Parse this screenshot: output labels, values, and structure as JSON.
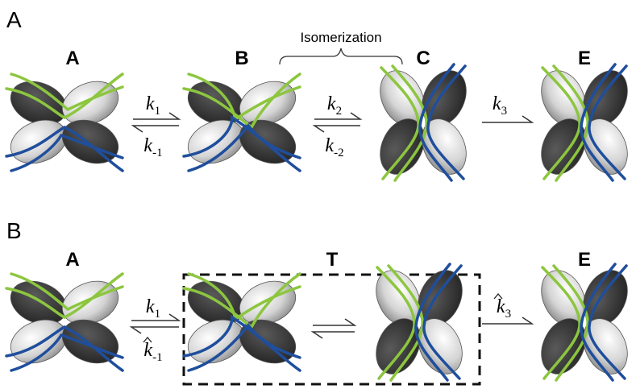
{
  "panels": [
    {
      "label": "A",
      "states": [
        "A",
        "B",
        "C",
        "E"
      ],
      "annotation": "Isomerization",
      "rates": [
        {
          "symbol": "k",
          "sub": "1"
        },
        {
          "symbol": "k",
          "sub": "-1"
        },
        {
          "symbol": "k",
          "sub": "2"
        },
        {
          "symbol": "k",
          "sub": "-2"
        },
        {
          "symbol": "k",
          "sub": "3"
        }
      ]
    },
    {
      "label": "B",
      "states": [
        "A",
        "T",
        "E"
      ],
      "rates": [
        {
          "symbol": "k",
          "sub": "1"
        },
        {
          "symbol": "k",
          "sub": "-1",
          "hat": true
        },
        {
          "symbol": "k",
          "sub": "3",
          "hat": true
        }
      ]
    }
  ]
}
